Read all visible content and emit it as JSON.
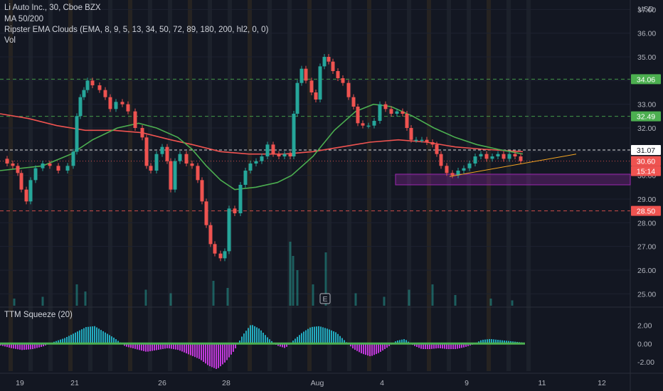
{
  "legend": {
    "symbol": "Li Auto Inc., 30, Cboe BZX",
    "ma": "MA 50/200",
    "ema_clouds": "Ripster EMA Clouds (EMA, 8, 9, 5, 13, 34, 50, 72, 89, 180, 200, hl2, 0, 0)",
    "vol": "Vol",
    "squeeze": "TTM Squeeze (20)"
  },
  "currency": "USD",
  "earnings_marker": "E",
  "colors": {
    "background": "#131722",
    "up": "#26a69a",
    "down": "#ef5350",
    "ma_fast": "#4caf50",
    "ma_slow": "#f05350",
    "support_zone": "#9c27b0",
    "trendline": "#f5a623",
    "squeeze_up": "#26c6da",
    "squeeze_down": "#e040fb"
  },
  "chart_data": {
    "type": "line",
    "y_axis": {
      "ticks": [
        "37.00",
        "36.00",
        "35.00",
        "34.00",
        "33.00",
        "32.00",
        "31.00",
        "30.00",
        "29.00",
        "28.00",
        "27.00",
        "26.00",
        "25.00"
      ],
      "range": [
        24.5,
        37.4
      ]
    },
    "x_axis": {
      "ticks": [
        "19",
        "21",
        "26",
        "28",
        "Aug",
        "4",
        "9",
        "11",
        "12"
      ]
    },
    "price_levels": [
      {
        "value": 34.06,
        "label": "34.06",
        "color": "#4caf50"
      },
      {
        "value": 32.49,
        "label": "32.49",
        "color": "#4caf50"
      },
      {
        "value": 31.07,
        "label": "31.07",
        "color": "#ffffff"
      },
      {
        "value": 30.6,
        "label": "30.60",
        "color": "#ef5350"
      },
      {
        "value": 28.5,
        "label": "28.50",
        "color": "#ef5350"
      }
    ],
    "countdown": "15:14",
    "support_zone": {
      "top": 30.05,
      "bottom": 29.6
    },
    "price_series": [
      {
        "x": 0,
        "y": 30.7
      },
      {
        "x": 10,
        "y": 30.5
      },
      {
        "x": 18,
        "y": 30.4
      },
      {
        "x": 25,
        "y": 30.1
      },
      {
        "x": 30,
        "y": 29.4
      },
      {
        "x": 37,
        "y": 28.9
      },
      {
        "x": 43,
        "y": 29.8
      },
      {
        "x": 50,
        "y": 30.3
      },
      {
        "x": 60,
        "y": 30.5
      },
      {
        "x": 70,
        "y": 30.4
      },
      {
        "x": 82,
        "y": 30.2
      },
      {
        "x": 95,
        "y": 30.4
      },
      {
        "x": 103,
        "y": 31.0
      },
      {
        "x": 108,
        "y": 32.5
      },
      {
        "x": 113,
        "y": 33.3
      },
      {
        "x": 118,
        "y": 33.6
      },
      {
        "x": 123,
        "y": 34.0
      },
      {
        "x": 130,
        "y": 33.8
      },
      {
        "x": 140,
        "y": 33.6
      },
      {
        "x": 148,
        "y": 33.3
      },
      {
        "x": 155,
        "y": 32.8
      },
      {
        "x": 163,
        "y": 33.1
      },
      {
        "x": 172,
        "y": 33.0
      },
      {
        "x": 180,
        "y": 32.7
      },
      {
        "x": 190,
        "y": 32.0
      },
      {
        "x": 200,
        "y": 31.6
      },
      {
        "x": 206,
        "y": 30.4
      },
      {
        "x": 212,
        "y": 30.2
      },
      {
        "x": 220,
        "y": 30.9
      },
      {
        "x": 228,
        "y": 31.2
      },
      {
        "x": 235,
        "y": 30.6
      },
      {
        "x": 240,
        "y": 29.4
      },
      {
        "x": 246,
        "y": 30.6
      },
      {
        "x": 253,
        "y": 30.9
      },
      {
        "x": 262,
        "y": 30.5
      },
      {
        "x": 270,
        "y": 30.4
      },
      {
        "x": 278,
        "y": 29.8
      },
      {
        "x": 284,
        "y": 28.9
      },
      {
        "x": 290,
        "y": 27.9
      },
      {
        "x": 296,
        "y": 27.1
      },
      {
        "x": 302,
        "y": 26.7
      },
      {
        "x": 310,
        "y": 26.5
      },
      {
        "x": 316,
        "y": 26.8
      },
      {
        "x": 322,
        "y": 28.6
      },
      {
        "x": 330,
        "y": 28.4
      },
      {
        "x": 338,
        "y": 29.6
      },
      {
        "x": 345,
        "y": 30.2
      },
      {
        "x": 352,
        "y": 30.5
      },
      {
        "x": 360,
        "y": 30.6
      },
      {
        "x": 368,
        "y": 30.8
      },
      {
        "x": 376,
        "y": 31.3
      },
      {
        "x": 384,
        "y": 30.9
      },
      {
        "x": 392,
        "y": 30.8
      },
      {
        "x": 400,
        "y": 30.9
      },
      {
        "x": 408,
        "y": 30.8
      },
      {
        "x": 413,
        "y": 32.6
      },
      {
        "x": 418,
        "y": 33.9
      },
      {
        "x": 424,
        "y": 34.5
      },
      {
        "x": 430,
        "y": 34.0
      },
      {
        "x": 438,
        "y": 33.5
      },
      {
        "x": 444,
        "y": 33.2
      },
      {
        "x": 450,
        "y": 34.6
      },
      {
        "x": 456,
        "y": 35.0
      },
      {
        "x": 462,
        "y": 34.8
      },
      {
        "x": 468,
        "y": 34.4
      },
      {
        "x": 475,
        "y": 34.1
      },
      {
        "x": 482,
        "y": 33.9
      },
      {
        "x": 490,
        "y": 33.3
      },
      {
        "x": 497,
        "y": 32.9
      },
      {
        "x": 503,
        "y": 32.2
      },
      {
        "x": 510,
        "y": 32.1
      },
      {
        "x": 518,
        "y": 32.1
      },
      {
        "x": 526,
        "y": 32.3
      },
      {
        "x": 534,
        "y": 33.0
      },
      {
        "x": 542,
        "y": 32.8
      },
      {
        "x": 550,
        "y": 32.6
      },
      {
        "x": 558,
        "y": 32.7
      },
      {
        "x": 566,
        "y": 32.6
      },
      {
        "x": 572,
        "y": 32.0
      },
      {
        "x": 578,
        "y": 31.5
      },
      {
        "x": 585,
        "y": 31.5
      },
      {
        "x": 593,
        "y": 31.5
      },
      {
        "x": 600,
        "y": 31.4
      },
      {
        "x": 608,
        "y": 31.3
      },
      {
        "x": 614,
        "y": 30.9
      },
      {
        "x": 620,
        "y": 30.4
      },
      {
        "x": 628,
        "y": 30.1
      },
      {
        "x": 636,
        "y": 30.0
      },
      {
        "x": 644,
        "y": 30.2
      },
      {
        "x": 652,
        "y": 30.3
      },
      {
        "x": 660,
        "y": 30.5
      },
      {
        "x": 668,
        "y": 30.8
      },
      {
        "x": 676,
        "y": 30.9
      },
      {
        "x": 684,
        "y": 30.7
      },
      {
        "x": 692,
        "y": 30.8
      },
      {
        "x": 700,
        "y": 30.9
      },
      {
        "x": 708,
        "y": 30.7
      },
      {
        "x": 716,
        "y": 30.9
      },
      {
        "x": 724,
        "y": 30.8
      },
      {
        "x": 732,
        "y": 30.6
      }
    ],
    "ma_fast": [
      {
        "x": 0,
        "y": 30.2
      },
      {
        "x": 60,
        "y": 30.4
      },
      {
        "x": 100,
        "y": 30.9
      },
      {
        "x": 130,
        "y": 31.5
      },
      {
        "x": 165,
        "y": 32.0
      },
      {
        "x": 195,
        "y": 32.2
      },
      {
        "x": 220,
        "y": 32.0
      },
      {
        "x": 250,
        "y": 31.6
      },
      {
        "x": 270,
        "y": 31.1
      },
      {
        "x": 290,
        "y": 30.4
      },
      {
        "x": 310,
        "y": 29.8
      },
      {
        "x": 330,
        "y": 29.4
      },
      {
        "x": 360,
        "y": 29.5
      },
      {
        "x": 390,
        "y": 29.7
      },
      {
        "x": 410,
        "y": 30.0
      },
      {
        "x": 440,
        "y": 30.8
      },
      {
        "x": 470,
        "y": 31.9
      },
      {
        "x": 500,
        "y": 32.7
      },
      {
        "x": 525,
        "y": 33.0
      },
      {
        "x": 550,
        "y": 32.9
      },
      {
        "x": 580,
        "y": 32.5
      },
      {
        "x": 610,
        "y": 32.0
      },
      {
        "x": 640,
        "y": 31.6
      },
      {
        "x": 670,
        "y": 31.3
      },
      {
        "x": 700,
        "y": 31.1
      },
      {
        "x": 735,
        "y": 30.9
      }
    ],
    "ma_slow": [
      {
        "x": 0,
        "y": 32.6
      },
      {
        "x": 40,
        "y": 32.4
      },
      {
        "x": 80,
        "y": 32.1
      },
      {
        "x": 120,
        "y": 31.9
      },
      {
        "x": 160,
        "y": 31.9
      },
      {
        "x": 200,
        "y": 31.8
      },
      {
        "x": 240,
        "y": 31.5
      },
      {
        "x": 270,
        "y": 31.3
      },
      {
        "x": 310,
        "y": 31.0
      },
      {
        "x": 350,
        "y": 30.9
      },
      {
        "x": 400,
        "y": 30.9
      },
      {
        "x": 440,
        "y": 31.0
      },
      {
        "x": 480,
        "y": 31.2
      },
      {
        "x": 520,
        "y": 31.4
      },
      {
        "x": 560,
        "y": 31.5
      },
      {
        "x": 600,
        "y": 31.4
      },
      {
        "x": 640,
        "y": 31.2
      },
      {
        "x": 680,
        "y": 31.1
      },
      {
        "x": 735,
        "y": 31.0
      }
    ],
    "trendline": [
      {
        "x": 632,
        "y": 29.95
      },
      {
        "x": 810,
        "y": 30.9
      }
    ],
    "squeeze": {
      "ticks": [
        "2.00",
        "0.00",
        "-2.00"
      ],
      "range": [
        -3.0,
        3.2
      ]
    },
    "squeeze_hist": [
      {
        "x": 0,
        "y": -0.2
      },
      {
        "x": 15,
        "y": -0.5
      },
      {
        "x": 30,
        "y": -0.7
      },
      {
        "x": 45,
        "y": -0.6
      },
      {
        "x": 60,
        "y": -0.3
      },
      {
        "x": 75,
        "y": 0.2
      },
      {
        "x": 90,
        "y": 0.6
      },
      {
        "x": 105,
        "y": 1.2
      },
      {
        "x": 120,
        "y": 1.8
      },
      {
        "x": 132,
        "y": 1.9
      },
      {
        "x": 145,
        "y": 1.3
      },
      {
        "x": 160,
        "y": 0.6
      },
      {
        "x": 175,
        "y": -0.3
      },
      {
        "x": 190,
        "y": -0.6
      },
      {
        "x": 205,
        "y": -0.9
      },
      {
        "x": 220,
        "y": -0.7
      },
      {
        "x": 235,
        "y": -0.5
      },
      {
        "x": 250,
        "y": -0.7
      },
      {
        "x": 265,
        "y": -1.2
      },
      {
        "x": 280,
        "y": -1.7
      },
      {
        "x": 292,
        "y": -2.4
      },
      {
        "x": 304,
        "y": -2.8
      },
      {
        "x": 316,
        "y": -2.0
      },
      {
        "x": 328,
        "y": -0.8
      },
      {
        "x": 340,
        "y": 0.9
      },
      {
        "x": 352,
        "y": 2.1
      },
      {
        "x": 364,
        "y": 1.6
      },
      {
        "x": 376,
        "y": 0.6
      },
      {
        "x": 388,
        "y": -0.2
      },
      {
        "x": 400,
        "y": -0.5
      },
      {
        "x": 412,
        "y": 0.4
      },
      {
        "x": 424,
        "y": 1.2
      },
      {
        "x": 436,
        "y": 1.8
      },
      {
        "x": 448,
        "y": 1.9
      },
      {
        "x": 460,
        "y": 1.6
      },
      {
        "x": 472,
        "y": 1.2
      },
      {
        "x": 484,
        "y": 0.3
      },
      {
        "x": 496,
        "y": -0.6
      },
      {
        "x": 508,
        "y": -1.1
      },
      {
        "x": 520,
        "y": -1.4
      },
      {
        "x": 532,
        "y": -1.0
      },
      {
        "x": 544,
        "y": -0.4
      },
      {
        "x": 556,
        "y": 0.3
      },
      {
        "x": 568,
        "y": 0.5
      },
      {
        "x": 580,
        "y": -0.2
      },
      {
        "x": 592,
        "y": -0.6
      },
      {
        "x": 604,
        "y": -0.6
      },
      {
        "x": 616,
        "y": -0.5
      },
      {
        "x": 628,
        "y": -0.6
      },
      {
        "x": 640,
        "y": -0.6
      },
      {
        "x": 652,
        "y": -0.4
      },
      {
        "x": 664,
        "y": -0.1
      },
      {
        "x": 676,
        "y": 0.4
      },
      {
        "x": 688,
        "y": 0.5
      },
      {
        "x": 700,
        "y": 0.4
      },
      {
        "x": 712,
        "y": 0.3
      },
      {
        "x": 724,
        "y": 0.2
      },
      {
        "x": 735,
        "y": 0.1
      }
    ],
    "volume": [
      {
        "x": 20,
        "v": 4
      },
      {
        "x": 60,
        "v": 5
      },
      {
        "x": 108,
        "v": 12
      },
      {
        "x": 120,
        "v": 8
      },
      {
        "x": 205,
        "v": 9
      },
      {
        "x": 240,
        "v": 7
      },
      {
        "x": 300,
        "v": 14
      },
      {
        "x": 320,
        "v": 10
      },
      {
        "x": 408,
        "v": 36
      },
      {
        "x": 412,
        "v": 28
      },
      {
        "x": 418,
        "v": 20
      },
      {
        "x": 440,
        "v": 12
      },
      {
        "x": 458,
        "v": 30
      },
      {
        "x": 500,
        "v": 7
      },
      {
        "x": 540,
        "v": 5
      },
      {
        "x": 575,
        "v": 9
      },
      {
        "x": 608,
        "v": 12
      },
      {
        "x": 640,
        "v": 6
      },
      {
        "x": 690,
        "v": 4
      },
      {
        "x": 720,
        "v": 3
      }
    ]
  }
}
